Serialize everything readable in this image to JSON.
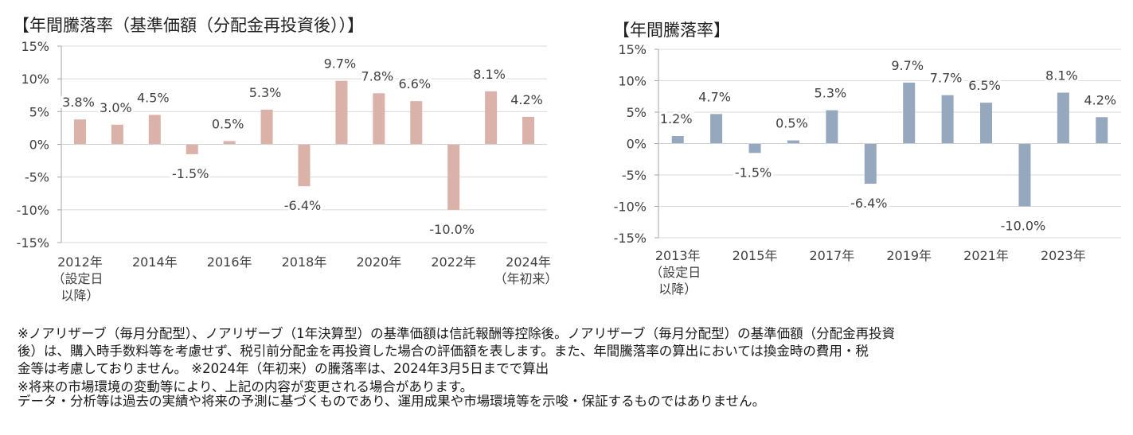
{
  "chart_data": [
    {
      "type": "bar",
      "title": "【年間騰落率（基準価額（分配金再投資後））】",
      "categories": [
        "2012年（設定日以降）",
        "2013年",
        "2014年",
        "2015年",
        "2016年",
        "2017年",
        "2018年",
        "2019年",
        "2020年",
        "2021年",
        "2022年",
        "2023年",
        "2024年（年初来）"
      ],
      "values": [
        3.8,
        3.0,
        4.5,
        -1.5,
        0.5,
        5.3,
        -6.4,
        9.7,
        7.8,
        6.6,
        -10.0,
        8.1,
        4.2
      ],
      "data_labels": [
        "3.8%",
        "3.0%",
        "4.5%",
        "-1.5%",
        "0.5%",
        "5.3%",
        "-6.4%",
        "9.7%",
        "7.8%",
        "6.6%",
        "-10.0%",
        "8.1%",
        "4.2%"
      ],
      "x_tick_labels": [
        {
          "index": 0,
          "lines": [
            "2012年",
            "（設定日",
            "以降）"
          ]
        },
        {
          "index": 2,
          "lines": [
            "2014年"
          ]
        },
        {
          "index": 4,
          "lines": [
            "2016年"
          ]
        },
        {
          "index": 6,
          "lines": [
            "2018年"
          ]
        },
        {
          "index": 8,
          "lines": [
            "2020年"
          ]
        },
        {
          "index": 10,
          "lines": [
            "2022年"
          ]
        },
        {
          "index": 12,
          "lines": [
            "2024年",
            "（年初来）"
          ]
        }
      ],
      "y_ticks": [
        15,
        10,
        5,
        0,
        -5,
        -10,
        -15
      ],
      "y_tick_labels": [
        "15%",
        "10%",
        "5%",
        "0%",
        "-5%",
        "-10%",
        "-15%"
      ],
      "ylim": [
        -15,
        15
      ],
      "xlabel": "",
      "ylabel": "",
      "grid": true,
      "legend": "none",
      "bar_color": "#dbb2a9"
    },
    {
      "type": "bar",
      "title": "【年間騰落率】",
      "categories": [
        "2013年（設定日以降）",
        "2014年",
        "2015年",
        "2016年",
        "2017年",
        "2018年",
        "2019年",
        "2020年",
        "2021年",
        "2022年",
        "2023年",
        "2024年"
      ],
      "values": [
        1.2,
        4.7,
        -1.5,
        0.5,
        5.3,
        -6.4,
        9.7,
        7.7,
        6.5,
        -10.0,
        8.1,
        4.2
      ],
      "data_labels": [
        "1.2%",
        "4.7%",
        "-1.5%",
        "0.5%",
        "5.3%",
        "-6.4%",
        "9.7%",
        "7.7%",
        "6.5%",
        "-10.0%",
        "8.1%",
        "4.2%"
      ],
      "x_tick_labels": [
        {
          "index": 0,
          "lines": [
            "2013年",
            "（設定日",
            "以降）"
          ]
        },
        {
          "index": 2,
          "lines": [
            "2015年"
          ]
        },
        {
          "index": 4,
          "lines": [
            "2017年"
          ]
        },
        {
          "index": 6,
          "lines": [
            "2019年"
          ]
        },
        {
          "index": 8,
          "lines": [
            "2021年"
          ]
        },
        {
          "index": 10,
          "lines": [
            "2023年"
          ]
        }
      ],
      "y_ticks": [
        15,
        10,
        5,
        0,
        -5,
        -10,
        -15
      ],
      "y_tick_labels": [
        "15%",
        "10%",
        "5%",
        "0%",
        "-5%",
        "-10%",
        "-15%"
      ],
      "ylim": [
        -15,
        15
      ],
      "xlabel": "",
      "ylabel": "",
      "grid": true,
      "legend": "none",
      "bar_color": "#96a8bd"
    }
  ],
  "footnotes": [
    "※ノアリザーブ（毎月分配型）、ノアリザーブ（1年決算型）の基準価額は信託報酬等控除後。ノアリザーブ（毎月分配型）の基準価額（分配金再投資",
    "後）は、購入時手数料等を考慮せず、税引前分配金を再投資した場合の評価額を表します。また、年間騰落率の算出においては換金時の費用・税",
    "金等は考慮しておりません。 ※2024年（年初来）の騰落率は、2024年3月5日までで算出",
    "※将来の市場環境の変動等により、上記の内容が変更される場合があります。",
    "データ・分析等は過去の実績や将来の予測に基づくものであり、運用成果や市場環境等を示唆・保証するものではありません。"
  ],
  "colors": {
    "grid": "#d9d9d9",
    "axis": "#a6a6a6",
    "text": "#404040"
  }
}
